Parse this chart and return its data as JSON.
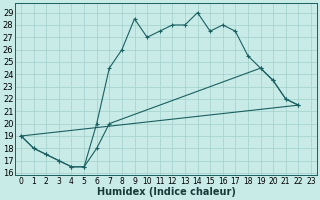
{
  "xlabel": "Humidex (Indice chaleur)",
  "bg_color": "#c8ebe8",
  "grid_color": "#a8d4d0",
  "line_color": "#1a6060",
  "xlim": [
    -0.5,
    23.5
  ],
  "ylim": [
    15.8,
    29.8
  ],
  "xticks": [
    0,
    1,
    2,
    3,
    4,
    5,
    6,
    7,
    8,
    9,
    10,
    11,
    12,
    13,
    14,
    15,
    16,
    17,
    18,
    19,
    20,
    21,
    22,
    23
  ],
  "yticks": [
    16,
    17,
    18,
    19,
    20,
    21,
    22,
    23,
    24,
    25,
    26,
    27,
    28,
    29
  ],
  "line1_x": [
    0,
    1,
    2,
    3,
    4,
    5,
    6,
    7,
    8,
    9,
    10,
    11,
    12,
    13,
    14,
    15,
    16,
    17,
    18,
    19,
    20,
    21,
    22
  ],
  "line1_y": [
    19,
    18,
    17.5,
    17,
    16.5,
    16.5,
    20,
    24.5,
    26,
    28.5,
    27,
    27.5,
    28,
    28,
    29,
    27.5,
    28,
    27.5,
    25.5,
    24.5,
    23.5,
    22,
    21.5
  ],
  "line2_x": [
    0,
    1,
    2,
    3,
    4,
    5,
    6,
    7,
    19,
    20,
    21,
    22
  ],
  "line2_y": [
    19,
    18,
    17.5,
    17,
    16.5,
    16.5,
    18,
    20,
    24.5,
    23.5,
    22,
    21.5
  ],
  "line3_x": [
    0,
    22
  ],
  "line3_y": [
    19,
    21.5
  ],
  "font_size_label": 7,
  "font_size_tick": 5.5
}
